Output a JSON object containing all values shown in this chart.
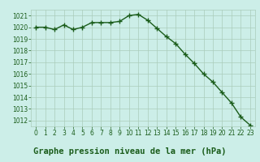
{
  "x": [
    0,
    1,
    2,
    3,
    4,
    5,
    6,
    7,
    8,
    9,
    10,
    11,
    12,
    13,
    14,
    15,
    16,
    17,
    18,
    19,
    20,
    21,
    22,
    23
  ],
  "y": [
    1020.0,
    1020.0,
    1019.8,
    1020.2,
    1019.8,
    1020.0,
    1020.4,
    1020.4,
    1020.4,
    1020.5,
    1021.0,
    1021.1,
    1020.6,
    1019.9,
    1019.2,
    1018.6,
    1017.7,
    1016.9,
    1016.0,
    1015.3,
    1014.4,
    1013.5,
    1012.3,
    1011.6
  ],
  "line_color": "#1a5c1a",
  "marker": "+",
  "markersize": 4,
  "linewidth": 1.0,
  "title": "Graphe pression niveau de la mer (hPa)",
  "ylim": [
    1011.5,
    1021.5
  ],
  "xlim": [
    -0.5,
    23.5
  ],
  "yticks": [
    1012,
    1013,
    1014,
    1015,
    1016,
    1017,
    1018,
    1019,
    1020,
    1021
  ],
  "xticks": [
    0,
    1,
    2,
    3,
    4,
    5,
    6,
    7,
    8,
    9,
    10,
    11,
    12,
    13,
    14,
    15,
    16,
    17,
    18,
    19,
    20,
    21,
    22,
    23
  ],
  "bg_color": "#cceee8",
  "grid_color": "#aaccbb",
  "title_color": "#1a5c1a",
  "title_fontsize": 7.5,
  "tick_fontsize": 5.5,
  "tick_color": "#1a5c1a"
}
